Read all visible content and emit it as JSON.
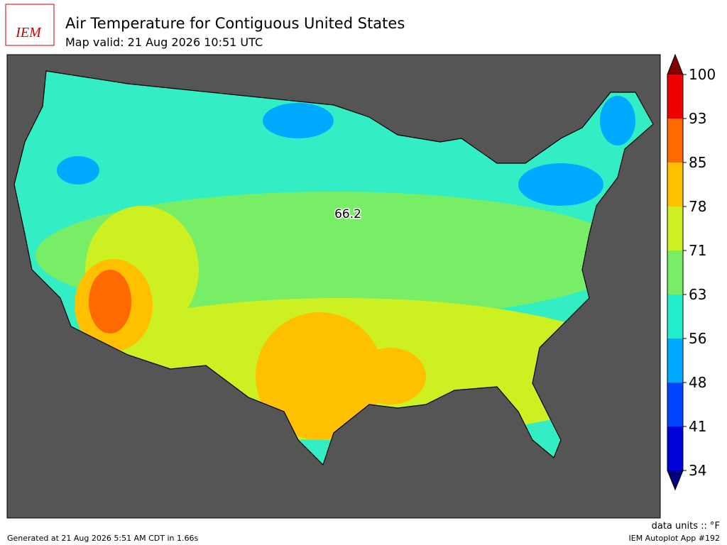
{
  "header": {
    "logo": "IEM",
    "title": "Air Temperature for Contiguous United States",
    "subtitle": "Map valid: 21 Aug 2026 10:51 UTC"
  },
  "map": {
    "annotation": 66.2
  },
  "colorbar": {
    "ticks": [
      34,
      41,
      48,
      56,
      63,
      71,
      78,
      85,
      93,
      100
    ],
    "colors": [
      "#0000d8",
      "#0044ff",
      "#00aaff",
      "#22eecc",
      "#77ee66",
      "#ccf022",
      "#ffc000",
      "#ff6a00",
      "#ee0000"
    ],
    "under_color": "#000080",
    "over_color": "#800000"
  },
  "footer": {
    "units": "data units :: °F",
    "generated": "Generated at 21 Aug 2026 5:51 AM CDT in 1.66s",
    "app": "IEM Autoplot App #192"
  }
}
